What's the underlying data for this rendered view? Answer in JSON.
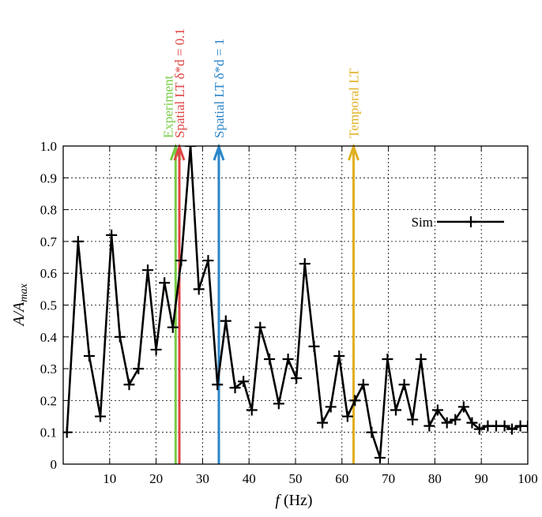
{
  "chart_data": {
    "type": "line",
    "title": "",
    "xlabel_italic": "f",
    "xlabel_rest": " (Hz)",
    "ylabel_main": "A/A",
    "ylabel_sub": "max",
    "xlim": [
      0,
      100
    ],
    "ylim": [
      0,
      1.0
    ],
    "grid": true,
    "legend_position": "top-right",
    "x_ticks": [
      10,
      20,
      30,
      40,
      50,
      60,
      70,
      80,
      90,
      100
    ],
    "y_ticks": [
      0,
      0.1,
      0.2,
      0.3,
      0.4,
      0.5,
      0.6,
      0.7,
      0.8,
      0.9,
      1.0
    ],
    "y_tick_labels": [
      "0",
      "0.1",
      "0.2",
      "0.3",
      "0.4",
      "0.5",
      "0.6",
      "0.7",
      "0.8",
      "0.9",
      "1.0"
    ],
    "series": [
      {
        "name": "Sim",
        "color": "#000000",
        "marker": "plus",
        "x": [
          0.8,
          3.2,
          5.6,
          8.0,
          10.4,
          12.2,
          14.2,
          16.2,
          18.2,
          20.0,
          21.8,
          23.6,
          25.4,
          27.4,
          29.2,
          31.2,
          33.2,
          35.0,
          37.0,
          38.8,
          40.6,
          42.4,
          44.4,
          46.4,
          48.4,
          50.2,
          52.0,
          54.0,
          55.8,
          57.6,
          59.4,
          61.2,
          62.8,
          64.6,
          66.4,
          68.2,
          69.8,
          71.6,
          73.4,
          75.2,
          77.0,
          78.8,
          80.6,
          82.6,
          84.4,
          86.2,
          88.0,
          89.6,
          91.4,
          93.2,
          95.0,
          96.6,
          98.4,
          100.0
        ],
        "y": [
          0.1,
          0.7,
          0.34,
          0.15,
          0.72,
          0.4,
          0.25,
          0.3,
          0.61,
          0.36,
          0.57,
          0.43,
          0.64,
          1.0,
          0.55,
          0.64,
          0.25,
          0.45,
          0.24,
          0.26,
          0.17,
          0.43,
          0.33,
          0.19,
          0.33,
          0.27,
          0.63,
          0.37,
          0.13,
          0.18,
          0.34,
          0.15,
          0.2,
          0.25,
          0.1,
          0.02,
          0.33,
          0.17,
          0.25,
          0.14,
          0.33,
          0.12,
          0.17,
          0.13,
          0.14,
          0.18,
          0.13,
          0.11,
          0.12,
          0.12,
          0.12,
          0.11,
          0.12,
          0.12
        ]
      }
    ],
    "markers": [
      {
        "label": "Experiment",
        "x": 24.2,
        "color": "#77cc44"
      },
      {
        "label": "Spatial LT δ*d = 0.1",
        "x": 25.0,
        "color": "#e04444"
      },
      {
        "label": "Spatial LT δ*d = 1",
        "x": 33.5,
        "color": "#2a85c8"
      },
      {
        "label": "Temporal LT",
        "x": 62.5,
        "color": "#e0b020"
      }
    ]
  }
}
